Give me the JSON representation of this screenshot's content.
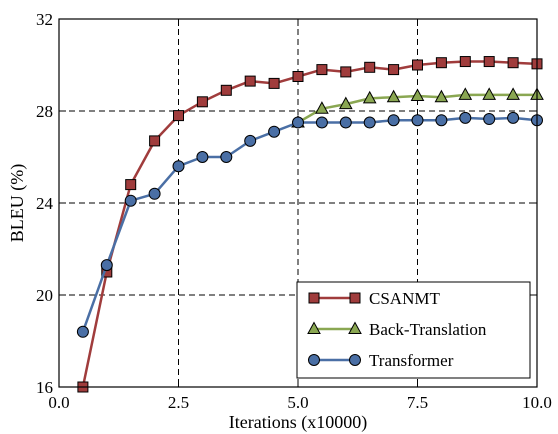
{
  "chart_data": {
    "type": "line",
    "title": "",
    "xlabel": "Iterations (x10000)",
    "ylabel": "BLEU (%)",
    "xlim": [
      0.0,
      10.0
    ],
    "ylim": [
      16,
      32
    ],
    "x_ticks": [
      "0.0",
      "2.5",
      "5.0",
      "7.5",
      "10.0"
    ],
    "x_tick_values": [
      0.0,
      2.5,
      5.0,
      7.5,
      10.0
    ],
    "y_ticks": [
      "16",
      "20",
      "24",
      "28",
      "32"
    ],
    "y_tick_values": [
      16,
      20,
      24,
      28,
      32
    ],
    "grid": true,
    "legend_position": "lower-right",
    "series": [
      {
        "name": "CSANMT",
        "color": "#a03c3c",
        "marker": "square",
        "x": [
          0.5,
          1.0,
          1.5,
          2.0,
          2.5,
          3.0,
          3.5,
          4.0,
          4.5,
          5.0,
          5.5,
          6.0,
          6.5,
          7.0,
          7.5,
          8.0,
          8.5,
          9.0,
          9.5,
          10.0
        ],
        "values": [
          16.0,
          21.0,
          24.8,
          26.7,
          27.8,
          28.4,
          28.9,
          29.3,
          29.2,
          29.5,
          29.8,
          29.7,
          29.9,
          29.8,
          30.0,
          30.1,
          30.15,
          30.15,
          30.1,
          30.05
        ]
      },
      {
        "name": "Back-Translation",
        "color": "#8aa752",
        "marker": "triangle",
        "x": [
          5.0,
          5.5,
          6.0,
          6.5,
          7.0,
          7.5,
          8.0,
          8.5,
          9.0,
          9.5,
          10.0
        ],
        "values": [
          27.5,
          28.1,
          28.3,
          28.55,
          28.6,
          28.65,
          28.6,
          28.7,
          28.7,
          28.7,
          28.7
        ]
      },
      {
        "name": "Transformer",
        "color": "#4a6fa5",
        "marker": "circle",
        "x": [
          0.5,
          1.0,
          1.5,
          2.0,
          2.5,
          3.0,
          3.5,
          4.0,
          4.5,
          5.0,
          5.5,
          6.0,
          6.5,
          7.0,
          7.5,
          8.0,
          8.5,
          9.0,
          9.5,
          10.0
        ],
        "values": [
          18.4,
          21.3,
          24.1,
          24.4,
          25.6,
          26.0,
          26.0,
          26.7,
          27.1,
          27.5,
          27.5,
          27.5,
          27.5,
          27.6,
          27.6,
          27.6,
          27.7,
          27.65,
          27.7,
          27.6
        ]
      }
    ]
  }
}
